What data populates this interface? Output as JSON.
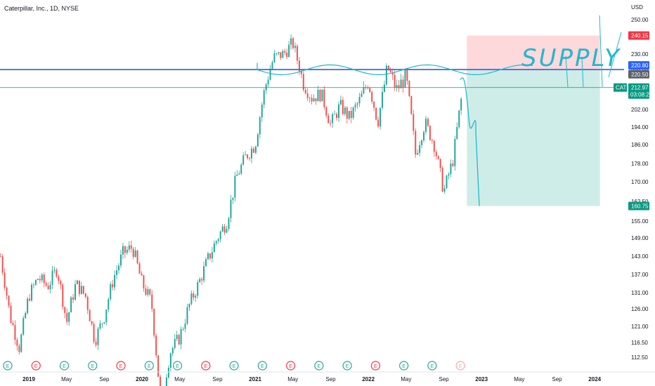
{
  "chart_data": {
    "type": "candlestick",
    "title": "Caterpillar, Inc., 1D, NYSE",
    "currency_label": "USD",
    "symbol": "CAT",
    "countdown": "03:08:21",
    "y_ticks": [
      112.5,
      116.5,
      121.0,
      126.0,
      131.0,
      137.0,
      143.0,
      149.0,
      155.0,
      162.5,
      170.0,
      178.0,
      186.0,
      194.0,
      202.0,
      212.0,
      220.0,
      230.0,
      240.0,
      250.0
    ],
    "y_tick_labels": [
      "112.50",
      "116.50",
      "121.00",
      "126.00",
      "131.00",
      "137.00",
      "143.00",
      "149.00",
      "155.00",
      "162.50",
      "170.00",
      "178.00",
      "186.00",
      "194.00",
      "202.00",
      "212.00",
      "220.00",
      "230.00",
      "240.00",
      "250.00"
    ],
    "x_labels": [
      {
        "label": "2019",
        "date": "2019-01"
      },
      {
        "label": "May",
        "date": "2019-05"
      },
      {
        "label": "Sep",
        "date": "2019-09"
      },
      {
        "label": "2020",
        "date": "2020-01"
      },
      {
        "label": "May",
        "date": "2020-05"
      },
      {
        "label": "Sep",
        "date": "2020-09"
      },
      {
        "label": "2021",
        "date": "2021-01"
      },
      {
        "label": "May",
        "date": "2021-05"
      },
      {
        "label": "Sep",
        "date": "2021-09"
      },
      {
        "label": "2022",
        "date": "2022-01"
      },
      {
        "label": "May",
        "date": "2022-05"
      },
      {
        "label": "Sep",
        "date": "2022-09"
      },
      {
        "label": "2023",
        "date": "2023-01"
      },
      {
        "label": "May",
        "date": "2023-05"
      },
      {
        "label": "Sep",
        "date": "2023-09"
      },
      {
        "label": "2024",
        "date": "2024-01"
      }
    ],
    "price_path": [
      [
        "2018-10",
        143
      ],
      [
        "2018-11",
        124
      ],
      [
        "2018-12",
        115
      ],
      [
        "2019-01",
        130
      ],
      [
        "2019-02",
        136
      ],
      [
        "2019-03",
        133
      ],
      [
        "2019-04",
        139
      ],
      [
        "2019-05",
        122
      ],
      [
        "2019-06",
        134
      ],
      [
        "2019-07",
        130
      ],
      [
        "2019-08",
        117
      ],
      [
        "2019-09",
        124
      ],
      [
        "2019-10",
        136
      ],
      [
        "2019-11",
        144
      ],
      [
        "2019-12",
        146
      ],
      [
        "2020-01",
        134
      ],
      [
        "2020-02",
        128
      ],
      [
        "2020-03",
        100
      ],
      [
        "2020-04",
        114
      ],
      [
        "2020-05",
        118
      ],
      [
        "2020-06",
        127
      ],
      [
        "2020-07",
        134
      ],
      [
        "2020-08",
        142
      ],
      [
        "2020-09",
        149
      ],
      [
        "2020-10",
        155
      ],
      [
        "2020-11",
        172
      ],
      [
        "2020-12",
        181
      ],
      [
        "2021-01",
        186
      ],
      [
        "2021-02",
        212
      ],
      [
        "2021-03",
        228
      ],
      [
        "2021-04",
        230
      ],
      [
        "2021-05",
        236
      ],
      [
        "2021-06",
        216
      ],
      [
        "2021-07",
        208
      ],
      [
        "2021-08",
        210
      ],
      [
        "2021-09",
        195
      ],
      [
        "2021-10",
        204
      ],
      [
        "2021-11",
        198
      ],
      [
        "2021-12",
        206
      ],
      [
        "2022-01",
        216
      ],
      [
        "2022-02",
        196
      ],
      [
        "2022-03",
        222
      ],
      [
        "2022-04",
        212
      ],
      [
        "2022-05",
        218
      ],
      [
        "2022-06",
        182
      ],
      [
        "2022-07",
        196
      ],
      [
        "2022-08",
        186
      ],
      [
        "2022-09",
        166
      ],
      [
        "2022-10",
        180
      ],
      [
        "2022-11",
        212
      ]
    ],
    "horizontal_lines": [
      {
        "label": "220.80",
        "value": 220.8,
        "color": "#2962ff"
      },
      {
        "label": "220.50",
        "value": 220.5,
        "color": "#787b86"
      },
      {
        "label": "212.97",
        "value": 212.97,
        "color": "#089981"
      }
    ],
    "position": {
      "entry": 220.5,
      "target_label": "160.75",
      "target": 160.75,
      "stop_label": "240.15",
      "stop": 240.15,
      "start": "2022-11",
      "end": "2024-02",
      "stop_color": "#f7525f",
      "target_color": "#22ab94"
    },
    "annotation_text": "SUPPLY",
    "earnings_markers": [
      "2019-01",
      "2019-04",
      "2019-07",
      "2019-10",
      "2020-01",
      "2020-04",
      "2020-07",
      "2020-10",
      "2021-01",
      "2021-04",
      "2021-07",
      "2021-10",
      "2022-01",
      "2022-04",
      "2022-07",
      "2022-10",
      "2023-01"
    ],
    "earnings_letter": "E",
    "colors": {
      "up": "#26a69a",
      "down": "#ef5350",
      "drawing": "#22b8cf",
      "blue_line": "#2962ff"
    }
  }
}
